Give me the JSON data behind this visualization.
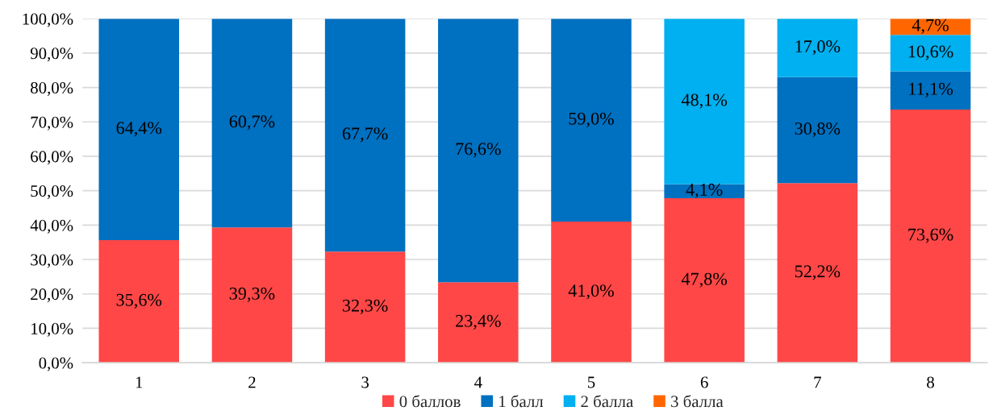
{
  "chart_data": {
    "type": "bar",
    "stacked": true,
    "categories": [
      "1",
      "2",
      "3",
      "4",
      "5",
      "6",
      "7",
      "8"
    ],
    "series": [
      {
        "name": "0 баллов",
        "color": "#ff4747",
        "values": [
          35.6,
          39.3,
          32.3,
          23.4,
          41.0,
          47.8,
          52.2,
          73.6
        ],
        "value_labels": [
          "35,6%",
          "39,3%",
          "32,3%",
          "23,4%",
          "41,0%",
          "47,8%",
          "52,2%",
          "73,6%"
        ]
      },
      {
        "name": "1 балл",
        "color": "#0070c0",
        "values": [
          64.4,
          60.7,
          67.7,
          76.6,
          59.0,
          4.1,
          30.8,
          11.1
        ],
        "value_labels": [
          "64,4%",
          "60,7%",
          "67,7%",
          "76,6%",
          "59,0%",
          "4,1%",
          "30,8%",
          "11,1%"
        ]
      },
      {
        "name": "2 балла",
        "color": "#00b0f0",
        "values": [
          null,
          null,
          null,
          null,
          null,
          48.1,
          17.0,
          10.6
        ],
        "value_labels": [
          null,
          null,
          null,
          null,
          null,
          "48,1%",
          "17,0%",
          "10,6%"
        ]
      },
      {
        "name": "3 балла",
        "color": "#ff6600",
        "values": [
          null,
          null,
          null,
          null,
          null,
          null,
          null,
          4.7
        ],
        "value_labels": [
          null,
          null,
          null,
          null,
          null,
          null,
          null,
          "4,7%"
        ]
      }
    ],
    "ylim": [
      0,
      100
    ],
    "yticks": [
      {
        "value": 0,
        "label": "0,0%"
      },
      {
        "value": 10,
        "label": "10,0%"
      },
      {
        "value": 20,
        "label": "20,0%"
      },
      {
        "value": 30,
        "label": "30,0%"
      },
      {
        "value": 40,
        "label": "40,0%"
      },
      {
        "value": 50,
        "label": "50,0%"
      },
      {
        "value": 60,
        "label": "60,0%"
      },
      {
        "value": 70,
        "label": "70,0%"
      },
      {
        "value": 80,
        "label": "80,0%"
      },
      {
        "value": 90,
        "label": "90,0%"
      },
      {
        "value": 100,
        "label": "100,0%"
      }
    ],
    "grid": "y",
    "legend": "bottom"
  }
}
